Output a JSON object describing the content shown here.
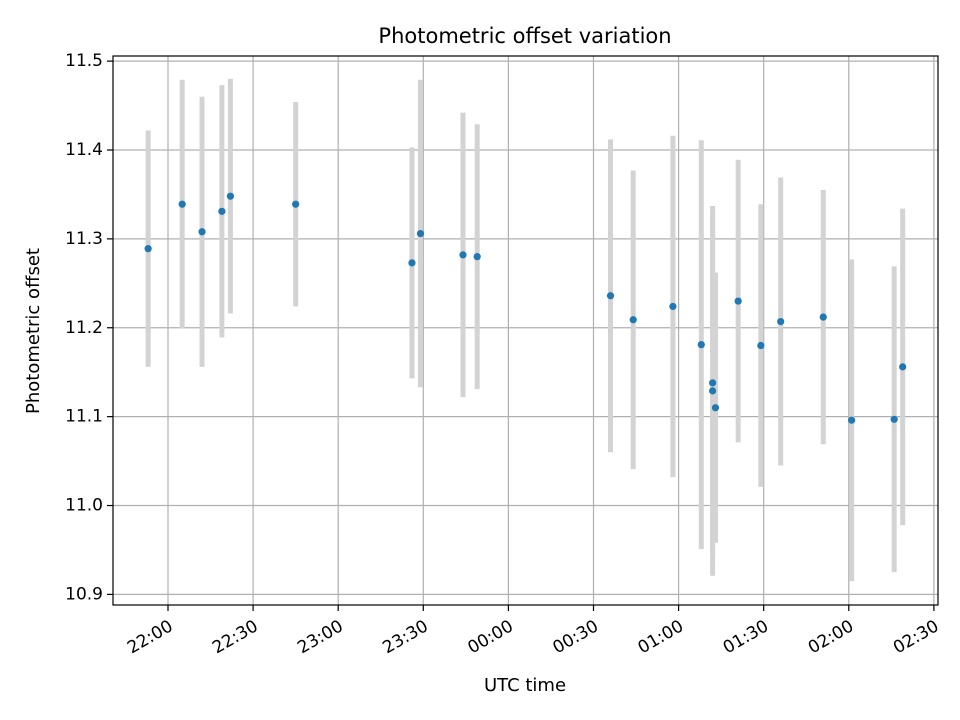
{
  "chart_data": {
    "type": "scatter",
    "title": "Photometric offset variation",
    "xlabel": "UTC time",
    "ylabel": "Photometric offset",
    "x_tick_labels": [
      "22:00",
      "22:30",
      "23:00",
      "23:30",
      "00:00",
      "00:30",
      "01:00",
      "01:30",
      "02:00",
      "02:30"
    ],
    "y_tick_labels": [
      "10.9",
      "11.0",
      "11.1",
      "11.2",
      "11.3",
      "11.4",
      "11.5"
    ],
    "y_ticks": [
      10.9,
      11.0,
      11.1,
      11.2,
      11.3,
      11.4,
      11.5
    ],
    "ylim": [
      10.887,
      11.508
    ],
    "grid": true,
    "point_color": "#1f77b4",
    "errorbar_color": "#d3d3d3",
    "series": [
      {
        "points": [
          {
            "x": "21:53",
            "y": 11.289,
            "yerr": 0.133
          },
          {
            "x": "22:05",
            "y": 11.339,
            "yerr": 0.14
          },
          {
            "x": "22:12",
            "y": 11.308,
            "yerr": 0.152
          },
          {
            "x": "22:19",
            "y": 11.331,
            "yerr": 0.142
          },
          {
            "x": "22:22",
            "y": 11.348,
            "yerr": 0.132
          },
          {
            "x": "22:45",
            "y": 11.339,
            "yerr": 0.115
          },
          {
            "x": "23:26",
            "y": 11.273,
            "yerr": 0.13
          },
          {
            "x": "23:29",
            "y": 11.306,
            "yerr": 0.173
          },
          {
            "x": "23:44",
            "y": 11.282,
            "yerr": 0.16
          },
          {
            "x": "23:49",
            "y": 11.28,
            "yerr": 0.149
          },
          {
            "x": "00:36",
            "y": 11.236,
            "yerr": 0.176
          },
          {
            "x": "00:44",
            "y": 11.209,
            "yerr": 0.168
          },
          {
            "x": "00:58",
            "y": 11.224,
            "yerr": 0.192
          },
          {
            "x": "01:08",
            "y": 11.181,
            "yerr": 0.23
          },
          {
            "x": "01:12",
            "y": 11.138,
            "yerr": 0.195
          },
          {
            "x": "01:12",
            "y": 11.129,
            "yerr": 0.208
          },
          {
            "x": "01:13",
            "y": 11.11,
            "yerr": 0.152
          },
          {
            "x": "01:21",
            "y": 11.23,
            "yerr": 0.159
          },
          {
            "x": "01:29",
            "y": 11.18,
            "yerr": 0.159
          },
          {
            "x": "01:36",
            "y": 11.207,
            "yerr": 0.162
          },
          {
            "x": "01:51",
            "y": 11.212,
            "yerr": 0.143
          },
          {
            "x": "02:01",
            "y": 11.096,
            "yerr": 0.181
          },
          {
            "x": "02:16",
            "y": 11.097,
            "yerr": 0.172
          },
          {
            "x": "02:19",
            "y": 11.156,
            "yerr": 0.178
          }
        ]
      }
    ]
  }
}
